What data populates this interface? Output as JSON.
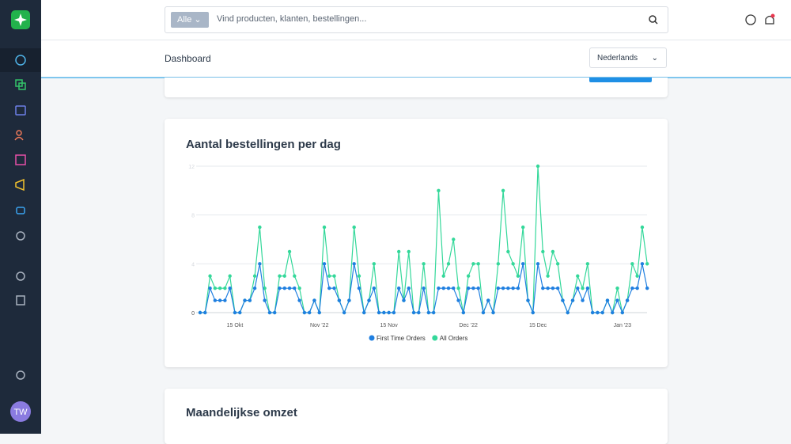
{
  "search": {
    "scope": "Alle",
    "placeholder": "Vind producten, klanten, bestellingen..."
  },
  "header": {
    "title": "Dashboard",
    "language": "Nederlands"
  },
  "user": {
    "initials": "TW"
  },
  "next_card": {
    "title": "Maandelijkse omzet"
  },
  "chart_data": {
    "type": "line",
    "title": "Aantal bestellingen per dag",
    "categories": [
      null,
      null,
      null,
      null,
      null,
      null,
      null,
      "15 Okt",
      null,
      null,
      null,
      null,
      null,
      null,
      null,
      null,
      null,
      null,
      null,
      null,
      null,
      null,
      null,
      null,
      "Nov '22",
      null,
      null,
      null,
      null,
      null,
      null,
      null,
      null,
      null,
      null,
      null,
      null,
      null,
      "15 Nov",
      null,
      null,
      null,
      null,
      null,
      null,
      null,
      null,
      null,
      null,
      null,
      null,
      null,
      null,
      null,
      "Dec '22",
      null,
      null,
      null,
      null,
      null,
      null,
      null,
      null,
      null,
      null,
      null,
      null,
      null,
      "15 Dec",
      null,
      null,
      null,
      null,
      null,
      null,
      null,
      null,
      null,
      null,
      null,
      null,
      null,
      null,
      null,
      null,
      "Jan '23",
      null,
      null,
      null,
      null,
      null
    ],
    "series": [
      {
        "name": "First Time Orders",
        "color": "#1f7fe0",
        "values": [
          0,
          0,
          2,
          1,
          1,
          1,
          2,
          0,
          0,
          1,
          1,
          2,
          4,
          1,
          0,
          0,
          2,
          2,
          2,
          2,
          1,
          0,
          0,
          1,
          0,
          4,
          2,
          2,
          1,
          0,
          1,
          4,
          2,
          0,
          1,
          2,
          0,
          0,
          0,
          0,
          2,
          1,
          2,
          0,
          0,
          2,
          0,
          0,
          2,
          2,
          2,
          2,
          1,
          0,
          2,
          2,
          2,
          0,
          1,
          0,
          2,
          2,
          2,
          2,
          2,
          4,
          1,
          0,
          4,
          2,
          2,
          2,
          2,
          1,
          0,
          1,
          2,
          1,
          2,
          0,
          0,
          0,
          1,
          0,
          1,
          0,
          1,
          2,
          2,
          4,
          2
        ]
      },
      {
        "name": "All Orders",
        "color": "#34d89a",
        "values": [
          0,
          0,
          3,
          2,
          2,
          2,
          3,
          0,
          0,
          1,
          1,
          3,
          7,
          2,
          0,
          0,
          3,
          3,
          5,
          3,
          2,
          0,
          0,
          1,
          0,
          7,
          3,
          3,
          1,
          0,
          1,
          7,
          3,
          0,
          1,
          4,
          0,
          0,
          0,
          0,
          5,
          1,
          5,
          0,
          0,
          4,
          0,
          0,
          10,
          3,
          4,
          6,
          2,
          0,
          3,
          4,
          4,
          0,
          1,
          0,
          4,
          10,
          5,
          4,
          3,
          7,
          1,
          0,
          12,
          5,
          3,
          5,
          4,
          1,
          0,
          1,
          3,
          2,
          4,
          0,
          0,
          0,
          1,
          0,
          2,
          0,
          1,
          4,
          3,
          7,
          4
        ]
      }
    ],
    "ylim": [
      0,
      12
    ],
    "yticks": [
      0,
      4,
      8,
      12
    ],
    "grid": true,
    "legend": "bottom"
  }
}
